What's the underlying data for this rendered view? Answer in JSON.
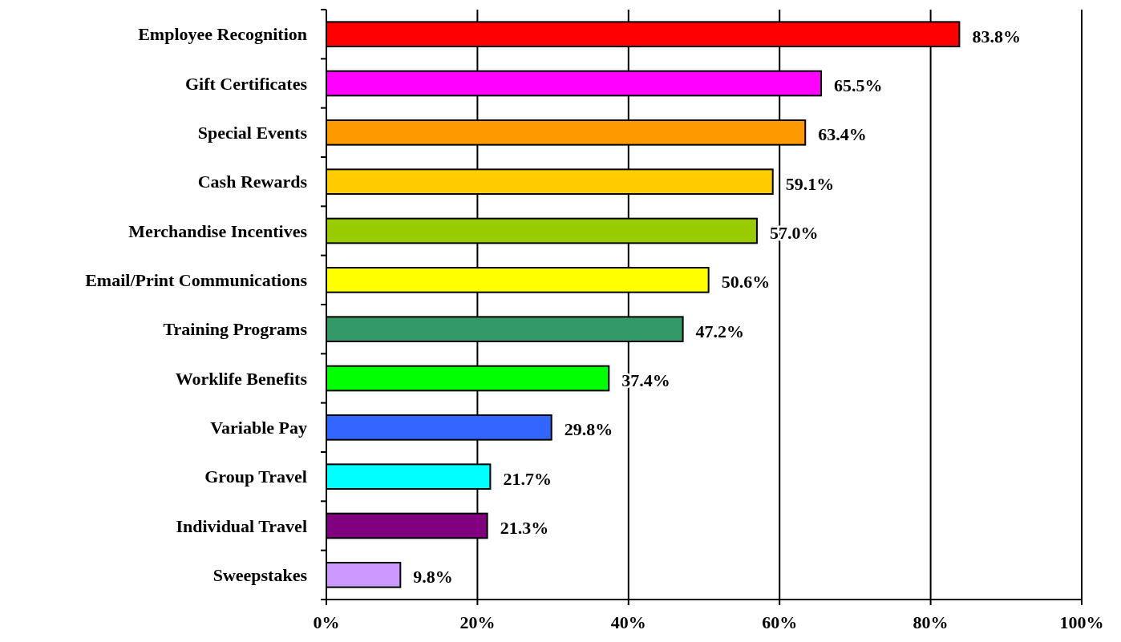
{
  "chart_data": {
    "type": "bar",
    "orientation": "horizontal",
    "categories": [
      "Employee Recognition",
      "Gift Certificates",
      "Special Events",
      "Cash Rewards",
      "Merchandise Incentives",
      "Email/Print Communications",
      "Training Programs",
      "Worklife Benefits",
      "Variable Pay",
      "Group Travel",
      "Individual Travel",
      "Sweepstakes"
    ],
    "values": [
      83.8,
      65.5,
      63.4,
      59.1,
      57.0,
      50.6,
      47.2,
      37.4,
      29.8,
      21.7,
      21.3,
      9.8
    ],
    "colors": [
      "#ff0000",
      "#ff00ff",
      "#ff9900",
      "#ffcc00",
      "#99cc00",
      "#ffff00",
      "#339966",
      "#00ff00",
      "#3366ff",
      "#00ffff",
      "#800080",
      "#cc99ff"
    ],
    "value_labels": [
      "83.8%",
      "65.5%",
      "63.4%",
      "59.1%",
      "57.0%",
      "50.6%",
      "47.2%",
      "37.4%",
      "29.8%",
      "21.7%",
      "21.3%",
      "9.8%"
    ],
    "xlim": [
      0,
      100
    ],
    "xticks": [
      {
        "value": 0,
        "label": "0%"
      },
      {
        "value": 20,
        "label": "20%"
      },
      {
        "value": 40,
        "label": "40%"
      },
      {
        "value": 60,
        "label": "60%"
      },
      {
        "value": 80,
        "label": "80%"
      },
      {
        "value": 100,
        "label": "100%"
      }
    ],
    "grid": "x"
  }
}
